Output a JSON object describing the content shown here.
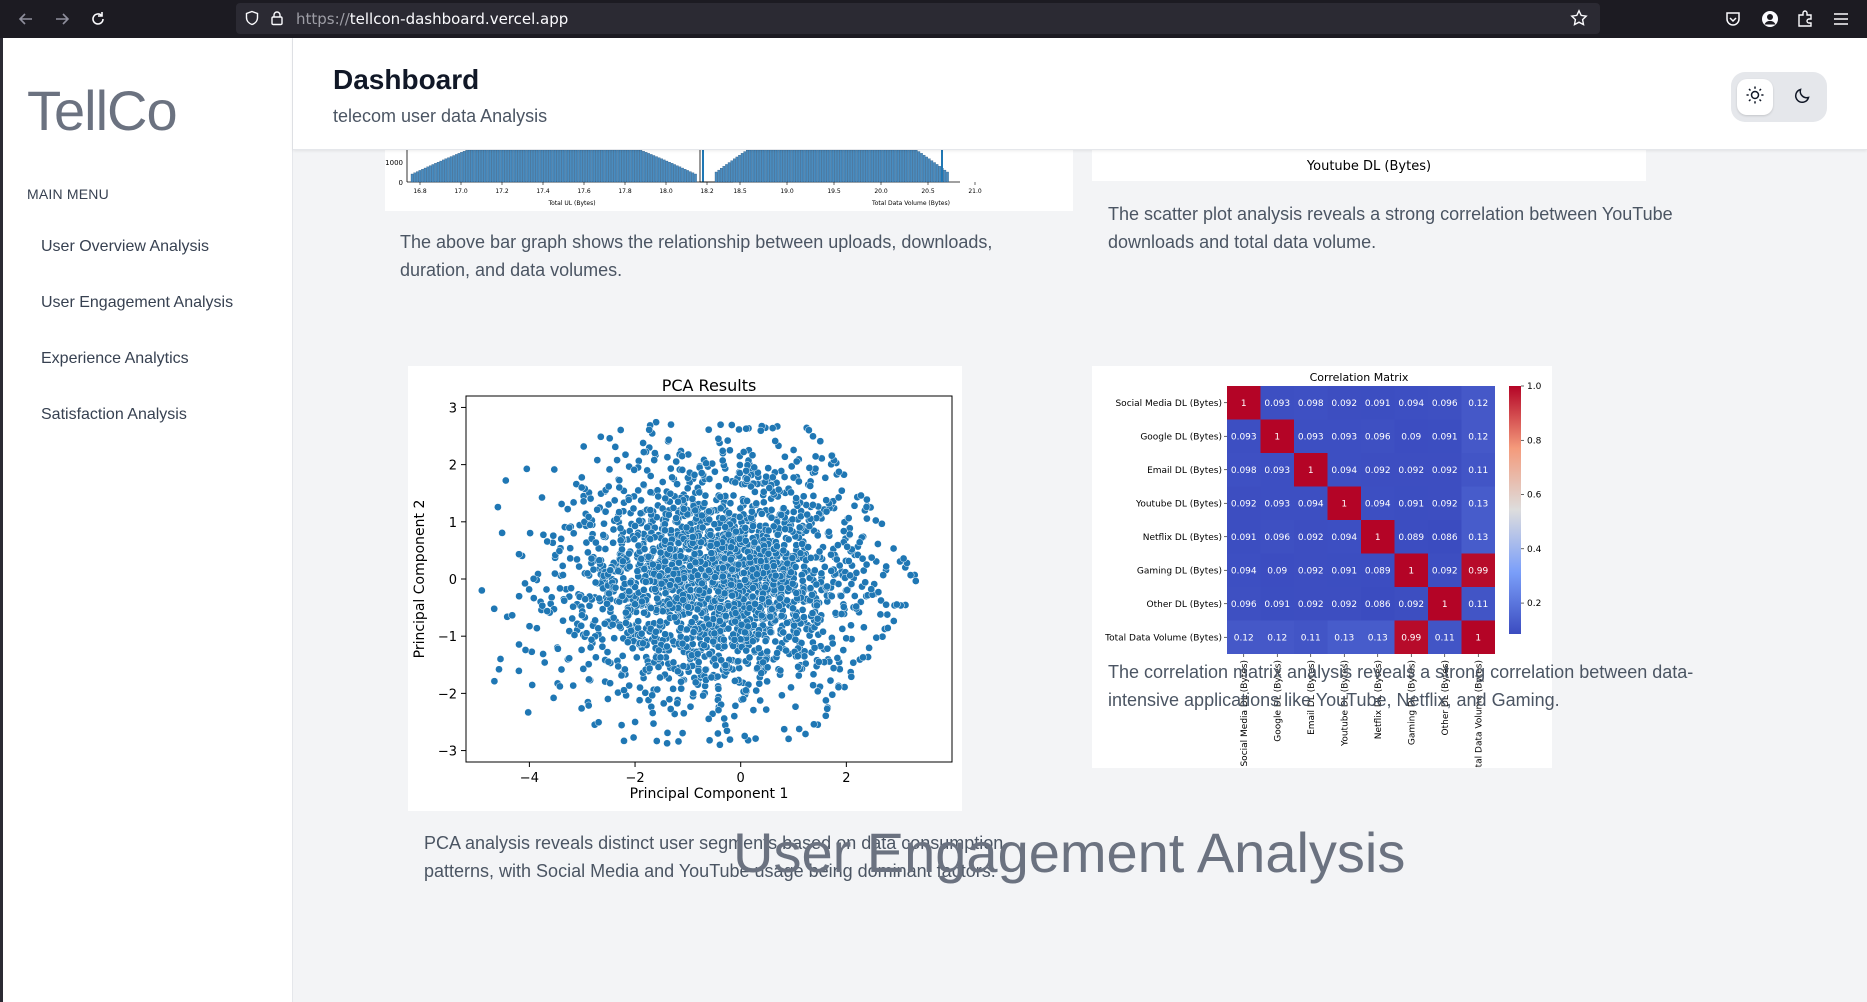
{
  "browser": {
    "url_protocol": "https://",
    "url_host": "tellcon-dashboard.vercel.app"
  },
  "sidebar": {
    "logo": "TellCo",
    "menu_heading": "MAIN MENU",
    "items": [
      {
        "label": "User Overview Analysis"
      },
      {
        "label": "User Engagement Analysis"
      },
      {
        "label": "Experience Analytics"
      },
      {
        "label": "Satisfaction Analysis"
      }
    ]
  },
  "header": {
    "title": "Dashboard",
    "subtitle": "telecom user data Analysis",
    "theme_options": [
      "light",
      "dark"
    ],
    "active_theme": "light"
  },
  "cards": {
    "histograms": {
      "left_xlabel": "Total UL (Bytes)",
      "left_ticks": [
        "16.8",
        "17.0",
        "17.2",
        "17.4",
        "17.6",
        "17.8",
        "18.0",
        "18.2"
      ],
      "left_ytick": "1000",
      "left_yzero": "0",
      "right_xlabel": "Total Data Volume (Bytes)",
      "right_ticks": [
        "18.5",
        "19.0",
        "19.5",
        "20.0",
        "20.5",
        "21.0"
      ],
      "description": "The above bar graph shows the relationship between uploads, downloads, duration, and data volumes."
    },
    "scatter_top": {
      "xlabel": "Youtube DL (Bytes)",
      "description": "The scatter plot analysis reveals a strong correlation between YouTube downloads and total data volume."
    },
    "pca": {
      "description": "PCA analysis reveals distinct user segments based on data consumption patterns, with Social Media and YouTube usage being dominant factors."
    },
    "correlation": {
      "description": "The correlation matrix analysis reveals a strong correlation between data-intensive applications like YouTube, Netflix, and Gaming."
    }
  },
  "next_section_title": "User Engagement Analysis",
  "chart_data": [
    {
      "type": "scatter",
      "title": "PCA Results",
      "xlabel": "Principal Component 1",
      "ylabel": "Principal Component 2",
      "xlim": [
        -5.2,
        4.0
      ],
      "ylim": [
        -3.2,
        3.2
      ],
      "xticks": [
        -4,
        -2,
        0,
        2
      ],
      "yticks": [
        3,
        2,
        1,
        0,
        -1,
        -2,
        -3
      ],
      "xtick_labels": [
        "−4",
        "−2",
        "0",
        "2"
      ],
      "ytick_labels": [
        "3",
        "2",
        "1",
        "0",
        "−1",
        "−2",
        "−3"
      ],
      "color": "#1f77b4",
      "point_count": 2400
    },
    {
      "type": "heatmap",
      "title": "Correlation Matrix",
      "labels": [
        "Social Media DL (Bytes)",
        "Google DL (Bytes)",
        "Email DL (Bytes)",
        "Youtube DL (Bytes)",
        "Netflix DL (Bytes)",
        "Gaming DL (Bytes)",
        "Other DL (Bytes)",
        "Total Data Volume (Bytes)"
      ],
      "values": [
        [
          1,
          0.093,
          0.098,
          0.092,
          0.091,
          0.094,
          0.096,
          0.12
        ],
        [
          0.093,
          1,
          0.093,
          0.093,
          0.096,
          0.09,
          0.091,
          0.12
        ],
        [
          0.098,
          0.093,
          1,
          0.094,
          0.092,
          0.092,
          0.092,
          0.11
        ],
        [
          0.092,
          0.093,
          0.094,
          1,
          0.094,
          0.091,
          0.092,
          0.13
        ],
        [
          0.091,
          0.096,
          0.092,
          0.094,
          1,
          0.089,
          0.086,
          0.13
        ],
        [
          0.094,
          0.09,
          0.092,
          0.091,
          0.089,
          1,
          0.092,
          0.99
        ],
        [
          0.096,
          0.091,
          0.092,
          0.092,
          0.086,
          0.092,
          1,
          0.11
        ],
        [
          0.12,
          0.12,
          0.11,
          0.13,
          0.13,
          0.99,
          0.11,
          1
        ]
      ],
      "colorbar_ticks": [
        "1.0",
        "0.8",
        "0.6",
        "0.4",
        "0.2"
      ],
      "colorbar_tick_values": [
        1.0,
        0.8,
        0.6,
        0.4,
        0.2
      ],
      "colorbar_range": [
        0.086,
        1.0
      ],
      "colormap": "coolwarm"
    }
  ]
}
